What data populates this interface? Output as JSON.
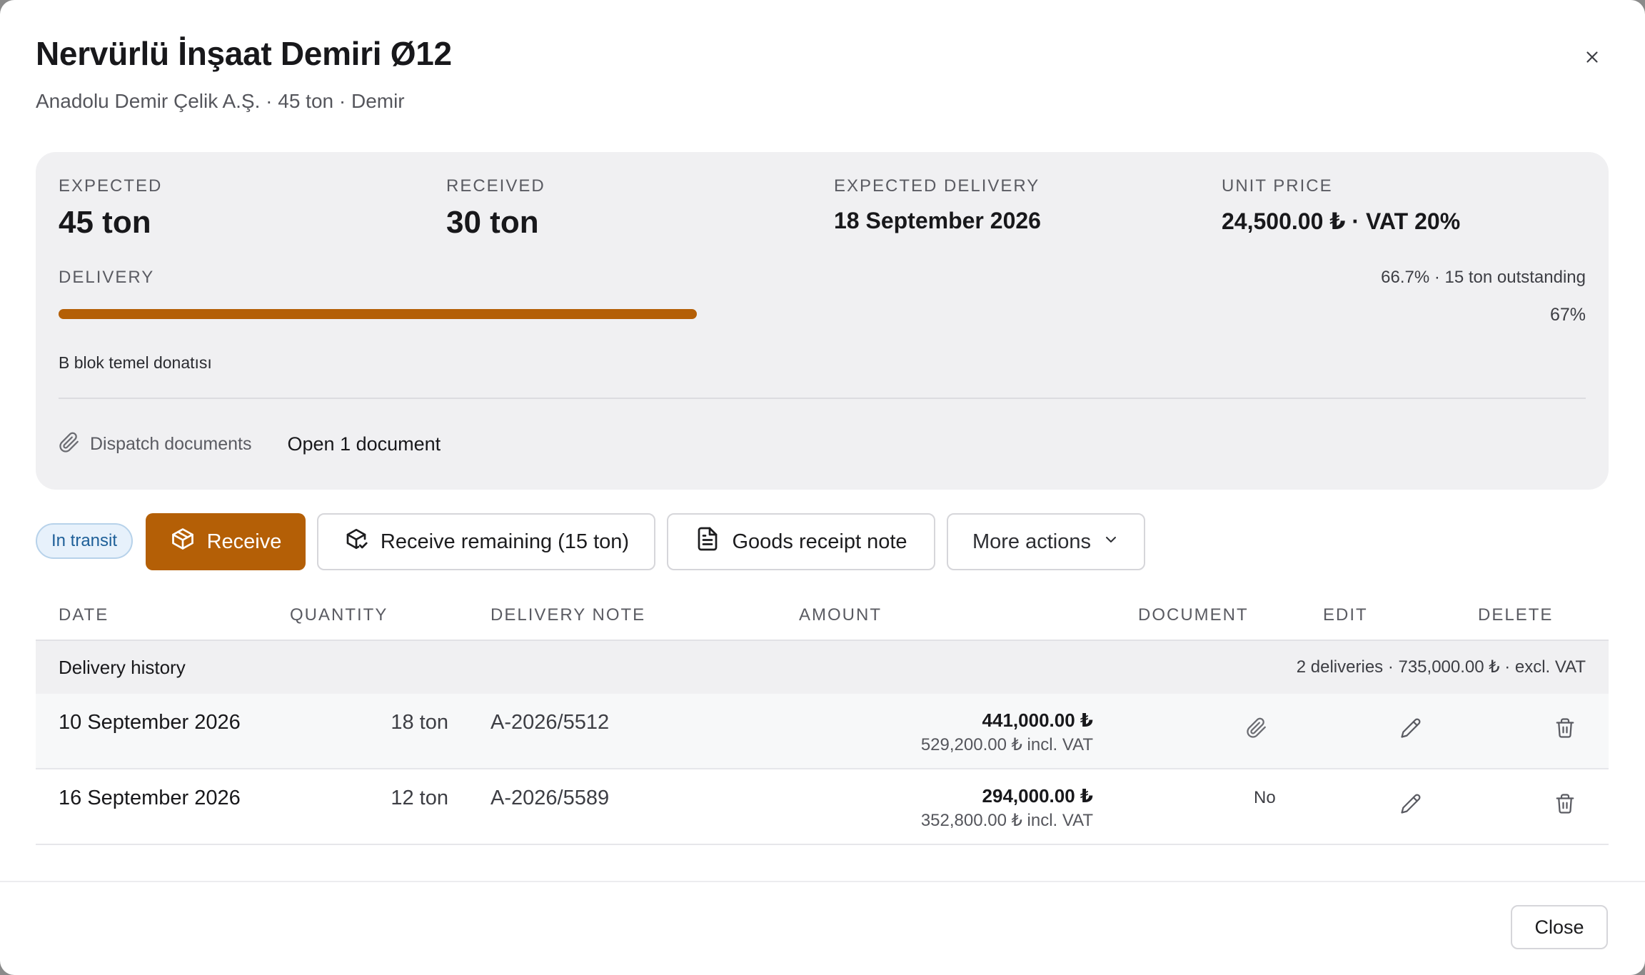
{
  "header": {
    "title": "Nervürlü İnşaat Demiri Ø12",
    "subtitle": "Anadolu Demir Çelik A.Ş. · 45 ton · Demir"
  },
  "summary": {
    "expected": {
      "label": "EXPECTED",
      "value": "45 ton"
    },
    "received": {
      "label": "RECEIVED",
      "value": "30 ton"
    },
    "expected_delivery": {
      "label": "EXPECTED DELIVERY",
      "value": "18 September 2026"
    },
    "unit_price": {
      "label": "UNIT PRICE",
      "value": "24,500.00 ₺ · VAT 20%"
    },
    "delivery": {
      "label": "DELIVERY",
      "outstanding": "66.7% · 15 ton outstanding",
      "percent_text": "67%",
      "progress_fraction": 0.667
    },
    "note": "B blok temel donatısı",
    "dispatch_label": "Dispatch documents",
    "open_document": "Open 1 document"
  },
  "actions": {
    "status_badge": "In transit",
    "receive": "Receive",
    "receive_remaining": "Receive remaining (15 ton)",
    "goods_receipt": "Goods receipt note",
    "more_actions": "More actions"
  },
  "table": {
    "headers": {
      "date": "DATE",
      "quantity": "QUANTITY",
      "delivery_note": "DELIVERY NOTE",
      "amount": "AMOUNT",
      "document": "DOCUMENT",
      "edit": "EDIT",
      "delete": "DELETE"
    },
    "group": {
      "title": "Delivery history",
      "summary": "2 deliveries · 735,000.00 ₺ · excl. VAT"
    },
    "rows": [
      {
        "date": "10 September 2026",
        "quantity": "18 ton",
        "delivery_note": "A-2026/5512",
        "amount": "441,000.00 ₺",
        "amount_incl_vat": "529,200.00 ₺ incl. VAT",
        "document_icon": "paperclip-icon"
      },
      {
        "date": "16 September 2026",
        "quantity": "12 ton",
        "delivery_note": "A-2026/5589",
        "amount": "294,000.00 ₺",
        "amount_incl_vat": "352,800.00 ₺ incl. VAT",
        "document_text": "No"
      }
    ]
  },
  "footer": {
    "close": "Close"
  },
  "colors": {
    "accent": "#b45f06",
    "badge_bg": "#e7f1fb",
    "badge_text": "#1e5f98",
    "panel_bg": "#f0f0f2"
  }
}
